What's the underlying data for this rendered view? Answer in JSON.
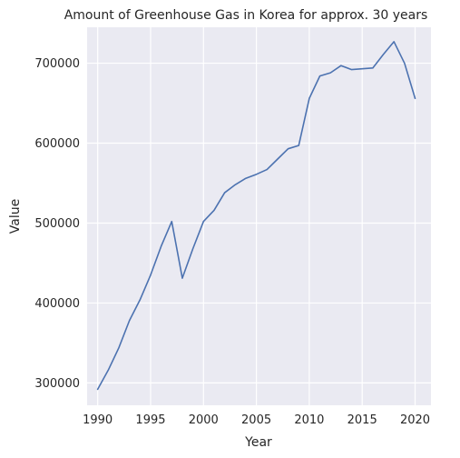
{
  "chart_data": {
    "type": "line",
    "title": "Amount of Greenhouse Gas in Korea for approx. 30 years",
    "xlabel": "Year",
    "ylabel": "Value",
    "xlim": [
      1989,
      2021.5
    ],
    "ylim": [
      272000,
      745000
    ],
    "x_ticks": [
      1990,
      1995,
      2000,
      2005,
      2010,
      2015,
      2020
    ],
    "y_ticks": [
      300000,
      400000,
      500000,
      600000,
      700000
    ],
    "grid": true,
    "colors": {
      "background": "#eaeaf2",
      "grid": "#ffffff",
      "line": "#4c72b0",
      "text": "#262626"
    },
    "series": [
      {
        "name": "Value",
        "x": [
          1990,
          1991,
          1992,
          1993,
          1994,
          1995,
          1996,
          1997,
          1998,
          1999,
          2000,
          2001,
          2002,
          2003,
          2004,
          2005,
          2006,
          2007,
          2008,
          2009,
          2010,
          2011,
          2012,
          2013,
          2014,
          2015,
          2016,
          2017,
          2018,
          2019,
          2020
        ],
        "values": [
          292000,
          316000,
          344000,
          378000,
          404000,
          435000,
          471000,
          502000,
          431000,
          468000,
          502000,
          516000,
          538000,
          548000,
          556000,
          561000,
          567000,
          580000,
          593000,
          597000,
          656000,
          684000,
          688000,
          697000,
          692000,
          693000,
          694000,
          711000,
          727000,
          700000,
          656000
        ]
      }
    ]
  }
}
